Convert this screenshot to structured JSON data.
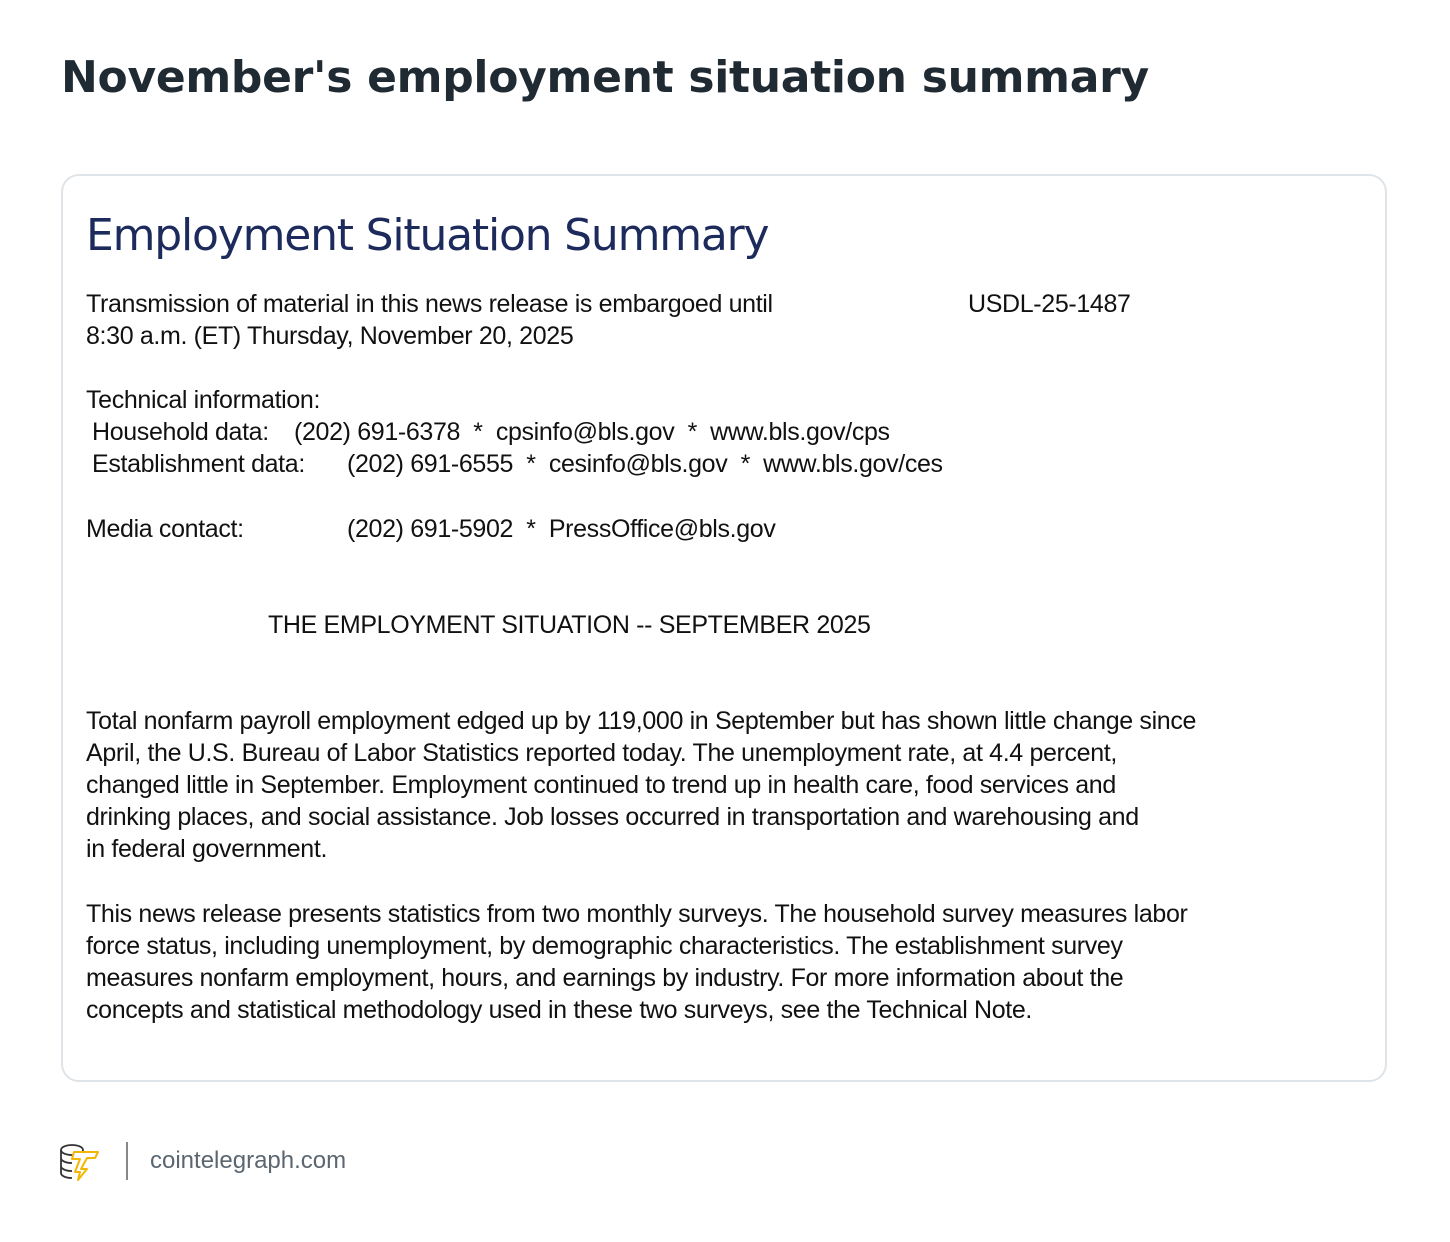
{
  "headline": "November's employment situation summary",
  "document": {
    "title": "Employment Situation Summary",
    "embargo_line1": "Transmission of material in this news release is embargoed until",
    "release_id": "USDL-25-1487",
    "embargo_line2": "8:30 a.m. (ET) Thursday, November 20, 2025",
    "tech_info_label": "Technical information:",
    "household_label": "Household data:",
    "household_contact": "(202) 691-6378  *  cpsinfo@bls.gov  *  www.bls.gov/cps",
    "establishment_label": "Establishment data:",
    "establishment_contact": "(202) 691-6555  *  cesinfo@bls.gov  *  www.bls.gov/ces",
    "media_label": "Media contact:",
    "media_contact": "(202) 691-5902  *  PressOffice@bls.gov",
    "section_heading": "THE EMPLOYMENT SITUATION -- SEPTEMBER 2025",
    "paragraph1": [
      "Total nonfarm payroll employment edged up by 119,000 in September but has shown little change since",
      "April, the U.S. Bureau of Labor Statistics reported today. The unemployment rate, at 4.4 percent,",
      "changed little in September. Employment continued to trend up in health care, food services and",
      "drinking places, and social assistance. Job losses occurred in transportation and warehousing and",
      "in federal government."
    ],
    "paragraph2": [
      "This news release presents statistics from two monthly surveys. The household survey measures labor",
      "force status, including unemployment, by demographic characteristics. The establishment survey",
      "measures nonfarm employment, hours, and earnings by industry. For more information about the",
      "concepts and statistical methodology used in these two surveys, see the Technical Note."
    ]
  },
  "footer": {
    "logo_icon": "cointelegraph-logo-icon",
    "site": "cointelegraph.com"
  },
  "colors": {
    "headline": "#1f2a33",
    "doc_title": "#1c2a5c",
    "logo_accent": "#f2b705"
  }
}
